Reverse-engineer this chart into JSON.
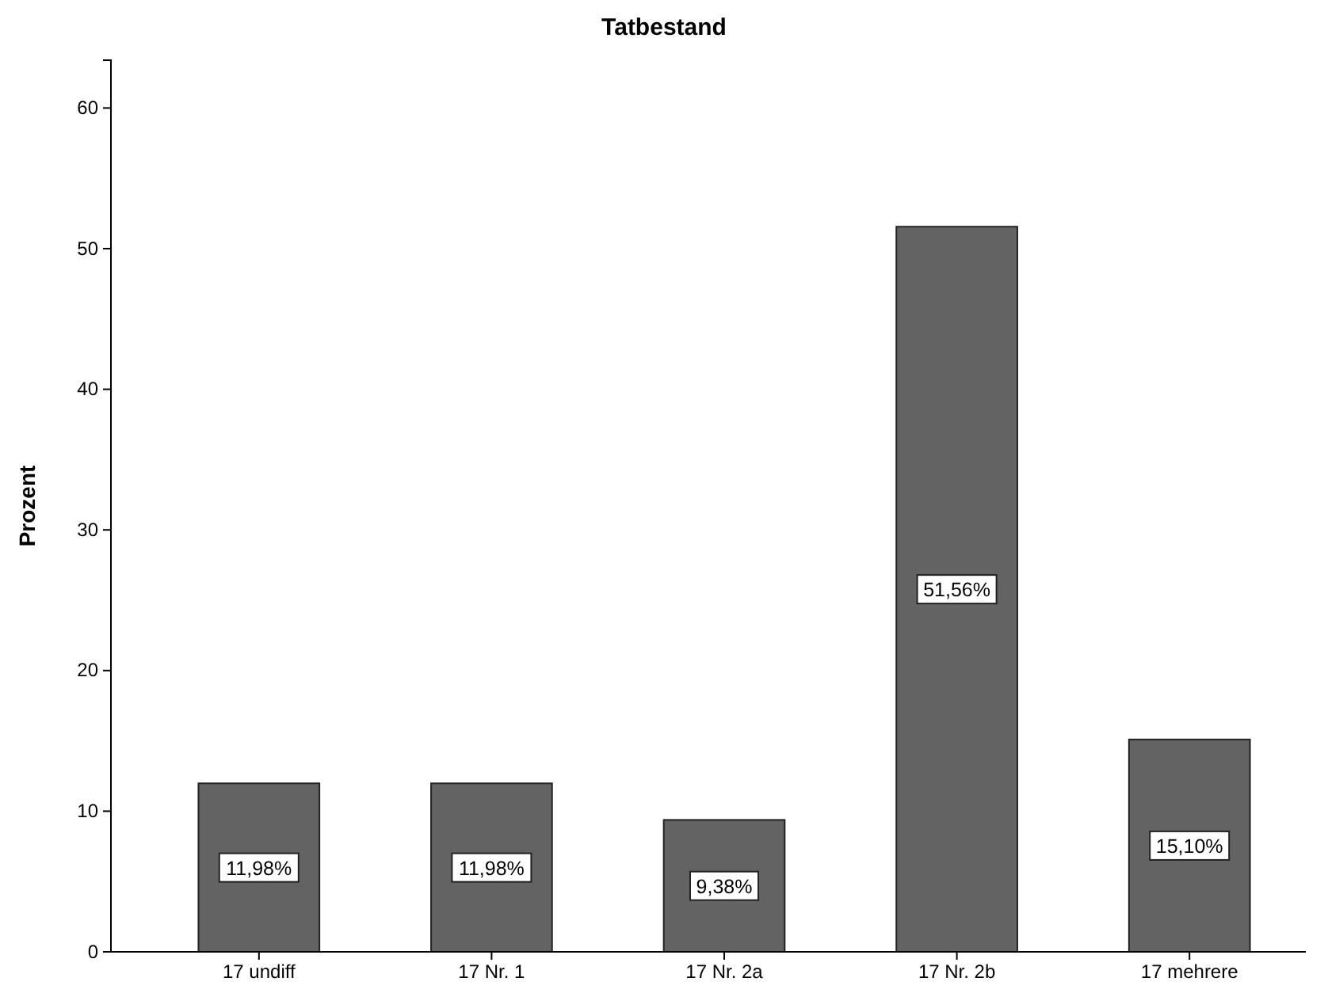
{
  "chart_data": {
    "type": "bar",
    "title": "Tatbestand",
    "ylabel": "Prozent",
    "categories": [
      "17 undiff",
      "17 Nr. 1",
      "17 Nr. 2a",
      "17 Nr. 2b",
      "17 mehrere"
    ],
    "values": [
      11.98,
      11.98,
      9.38,
      51.56,
      15.1
    ],
    "value_labels": [
      "11,98%",
      "11,98%",
      "9,38%",
      "51,56%",
      "15,10%"
    ],
    "color": "#636363",
    "ylim": [
      0,
      63.4
    ],
    "yticks": [
      0,
      10,
      20,
      30,
      40,
      50,
      60
    ],
    "grid": false
  }
}
